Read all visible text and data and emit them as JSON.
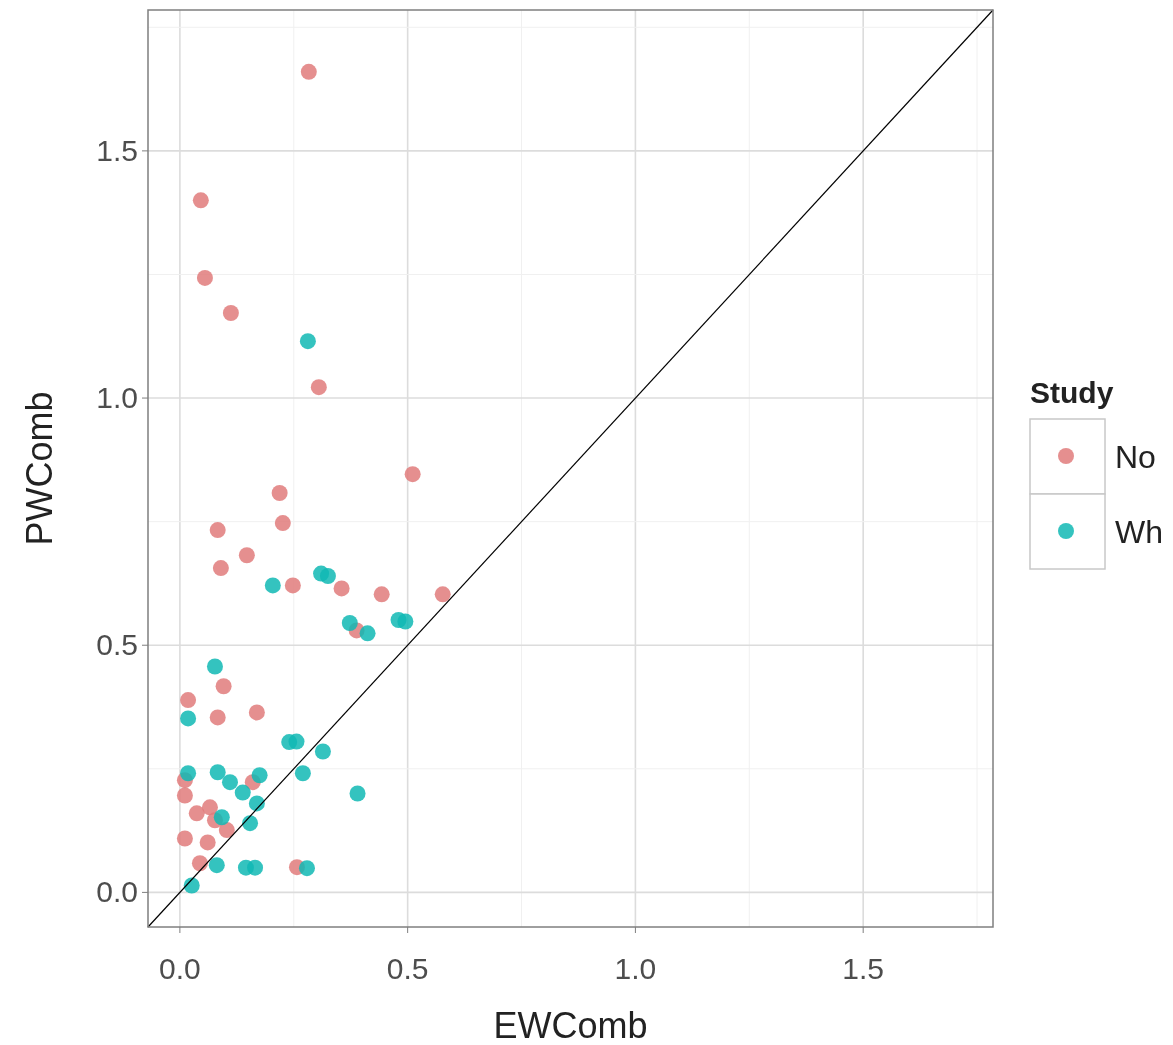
{
  "chart_data": {
    "type": "scatter",
    "xlabel": "EWComb",
    "ylabel": "PWComb",
    "legend_title": "Study",
    "legend": "right",
    "grid": true,
    "marker": "circle",
    "xlim": [
      -0.07,
      1.785
    ],
    "ylim": [
      -0.07,
      1.785
    ],
    "xticks": [
      {
        "value": 0,
        "label": "0.0"
      },
      {
        "value": 0.25,
        "label": null
      },
      {
        "value": 0.5,
        "label": "0.5"
      },
      {
        "value": 0.75,
        "label": null
      },
      {
        "value": 1,
        "label": "1.0"
      },
      {
        "value": 1.25,
        "label": null
      },
      {
        "value": 1.5,
        "label": "1.5"
      },
      {
        "value": 1.75,
        "label": null
      }
    ],
    "yticks": [
      {
        "value": 0,
        "label": "0.0"
      },
      {
        "value": 0.25,
        "label": null
      },
      {
        "value": 0.5,
        "label": "0.5"
      },
      {
        "value": 0.75,
        "label": null
      },
      {
        "value": 1,
        "label": "1.0"
      },
      {
        "value": 1.25,
        "label": null
      },
      {
        "value": 1.5,
        "label": "1.5"
      },
      {
        "value": 1.75,
        "label": null
      }
    ],
    "series": [
      {
        "name": "No",
        "color": "#e07b7b",
        "x": [
          0.283,
          0.046,
          0.055,
          0.112,
          0.305,
          0.511,
          0.219,
          0.226,
          0.083,
          0.147,
          0.09,
          0.248,
          0.355,
          0.443,
          0.577,
          0.388,
          0.096,
          0.018,
          0.083,
          0.169,
          0.16,
          0.011,
          0.011,
          0.037,
          0.066,
          0.077,
          0.103,
          0.011,
          0.061,
          0.044,
          0.257
        ],
        "values": [
          1.66,
          1.4,
          1.243,
          1.172,
          1.022,
          0.846,
          0.808,
          0.747,
          0.733,
          0.682,
          0.656,
          0.621,
          0.615,
          0.603,
          0.603,
          0.53,
          0.417,
          0.389,
          0.354,
          0.364,
          0.223,
          0.227,
          0.196,
          0.16,
          0.172,
          0.146,
          0.126,
          0.109,
          0.101,
          0.059,
          0.051
        ]
      },
      {
        "name": "Wh",
        "color": "#10b8b4",
        "x": [
          0.281,
          0.204,
          0.31,
          0.325,
          0.373,
          0.412,
          0.48,
          0.495,
          0.077,
          0.018,
          0.24,
          0.256,
          0.314,
          0.018,
          0.083,
          0.11,
          0.175,
          0.138,
          0.27,
          0.39,
          0.169,
          0.154,
          0.092,
          0.081,
          0.145,
          0.165,
          0.279,
          0.026
        ],
        "values": [
          1.115,
          0.621,
          0.645,
          0.64,
          0.545,
          0.524,
          0.551,
          0.548,
          0.457,
          0.352,
          0.304,
          0.305,
          0.285,
          0.241,
          0.243,
          0.223,
          0.237,
          0.202,
          0.241,
          0.2,
          0.18,
          0.14,
          0.152,
          0.055,
          0.05,
          0.05,
          0.049,
          0.014
        ]
      },
      {
        "type": "line",
        "color": "#000000",
        "marker": "none",
        "x": [
          -0.07,
          1.785
        ],
        "values": [
          -0.07,
          1.785
        ]
      }
    ]
  }
}
